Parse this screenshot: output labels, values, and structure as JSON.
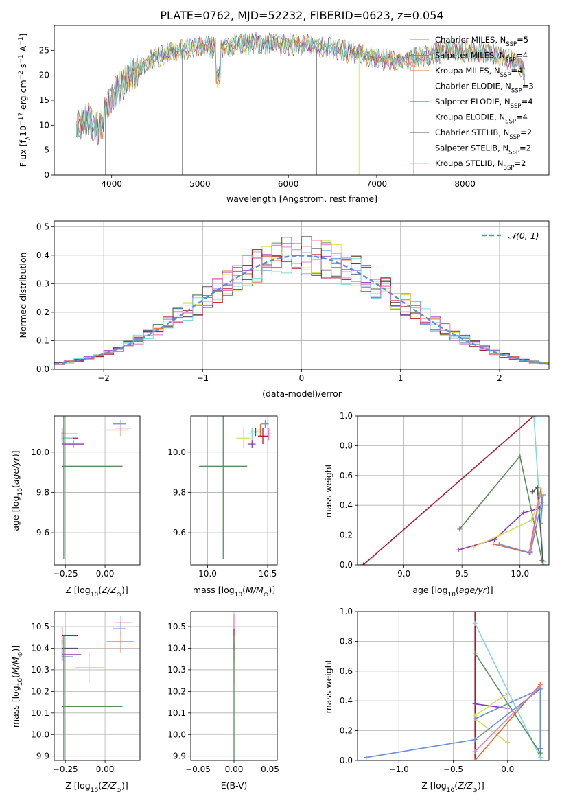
{
  "figure_title": "PLATE=0762, MJD=52232, FIBERID=0623, z=0.054",
  "colors": {
    "Chabrier MILES": "#6a8fd6",
    "Salpeter MILES": "#ee7d31",
    "Kroupa MILES": "#e46b2e",
    "Chabrier ELODIE": "#5c8c5c",
    "Salpeter ELODIE": "#8e35b4",
    "Kroupa ELODIE": "#d4e056",
    "Chabrier STELIB": "#555555",
    "Salpeter STELIB": "#b2182b",
    "Kroupa STELIB": "#7fd8dd",
    "extra_pink": "#e87bbd"
  },
  "chart_data": [
    {
      "id": "spectrum",
      "type": "line",
      "xlabel": "wavelength [Angstrom, rest frame]",
      "ylabel": "Flux [f_λ10^-17 erg cm^-2 s^-1 A^-1]",
      "xlim": [
        3350,
        8950
      ],
      "ylim": [
        0,
        30
      ],
      "xticks": [
        4000,
        5000,
        6000,
        7000,
        8000
      ],
      "yticks": [
        0,
        5,
        10,
        15,
        20,
        25
      ],
      "grid": false,
      "legend_position": "top-right",
      "legend": [
        {
          "label": "Chabrier MILES, N",
          "sub": "SSP",
          "suffix": "=5",
          "color_key": "Chabrier MILES"
        },
        {
          "label": "Salpeter MILES, N",
          "sub": "SSP",
          "suffix": "=4",
          "color_key": "Chabrier MILES"
        },
        {
          "label": "Kroupa MILES, N",
          "sub": "SSP",
          "suffix": "=4",
          "color_key": "Kroupa MILES"
        },
        {
          "label": "Chabrier ELODIE, N",
          "sub": "SSP",
          "suffix": "=3",
          "color_key": "Chabrier ELODIE"
        },
        {
          "label": "Salpeter ELODIE, N",
          "sub": "SSP",
          "suffix": "=4",
          "color_key": "Salpeter ELODIE"
        },
        {
          "label": "Kroupa ELODIE, N",
          "sub": "SSP",
          "suffix": "=4",
          "color_key": "Kroupa ELODIE"
        },
        {
          "label": "Chabrier STELIB, N",
          "sub": "SSP",
          "suffix": "=2",
          "color_key": "Chabrier STELIB"
        },
        {
          "label": "Salpeter STELIB, N",
          "sub": "SSP",
          "suffix": "=2",
          "color_key": "Salpeter STELIB"
        },
        {
          "label": "Kroupa STELIB, N",
          "sub": "SSP",
          "suffix": "=2",
          "color_key": "Kroupa STELIB"
        }
      ],
      "continuum": [
        [
          3600,
          10
        ],
        [
          3750,
          11
        ],
        [
          3850,
          9
        ],
        [
          3900,
          11
        ],
        [
          3960,
          14
        ],
        [
          4050,
          17
        ],
        [
          4150,
          19
        ],
        [
          4300,
          21
        ],
        [
          4450,
          23
        ],
        [
          4600,
          24.2
        ],
        [
          4800,
          25.2
        ],
        [
          5000,
          25.8
        ],
        [
          5200,
          25.6
        ],
        [
          5400,
          26.2
        ],
        [
          5600,
          26.5
        ],
        [
          5800,
          26.4
        ],
        [
          6000,
          26.2
        ],
        [
          6200,
          26.0
        ],
        [
          6400,
          25.6
        ],
        [
          6600,
          25.0
        ],
        [
          6800,
          24.2
        ],
        [
          7000,
          23.4
        ],
        [
          7200,
          22.8
        ],
        [
          7400,
          23.2
        ],
        [
          7600,
          24.2
        ],
        [
          7800,
          25.0
        ],
        [
          8000,
          24.8
        ],
        [
          8200,
          24.5
        ],
        [
          8400,
          23.8
        ],
        [
          8600,
          22.5
        ],
        [
          8680,
          20
        ]
      ],
      "dips": [
        [
          4800,
          0
        ],
        [
          6320,
          0
        ],
        [
          6800,
          0
        ],
        [
          7420,
          0
        ],
        [
          3930,
          0
        ]
      ]
    },
    {
      "id": "residuals",
      "type": "histogram",
      "xlabel": "(data-model)/error",
      "ylabel": "Normed distribution",
      "xlim": [
        -2.5,
        2.5
      ],
      "ylim": [
        0,
        0.52
      ],
      "xticks": [
        -2,
        -1,
        0,
        1,
        2
      ],
      "yticks": [
        0.0,
        0.1,
        0.2,
        0.3,
        0.4,
        0.5
      ],
      "grid": true,
      "legend": "𝒩(0, 1)",
      "legend_position": "top-right",
      "bin_width": 0.1,
      "bin_start": -2.5,
      "reference": {
        "type": "normal",
        "mean": 0,
        "sigma": 1
      }
    },
    {
      "id": "age_vs_Z",
      "type": "errorbar",
      "xlabel": "Z [log10(Z/Z⊙)]",
      "ylabel": "age  [log10(age/yr)]",
      "xlim": [
        -0.32,
        0.22
      ],
      "ylim": [
        9.44,
        10.18
      ],
      "xticks": [
        -0.25,
        0.0
      ],
      "xticklabels": [
        "−0.25",
        "0.00"
      ],
      "yticks": [
        9.6,
        9.8,
        10.0
      ],
      "grid": true,
      "points": [
        {
          "x": 0.1,
          "y": 10.14,
          "xerr": [
            0.05,
            0.03
          ],
          "yerr": 0.02,
          "color_key": "Chabrier MILES"
        },
        {
          "x": 0.1,
          "y": 10.11,
          "xerr": [
            0.09,
            0.05
          ],
          "yerr": 0.03,
          "color_key": "Kroupa MILES"
        },
        {
          "x": 0.1,
          "y": 10.12,
          "xerr": [
            0.04,
            0.07
          ],
          "yerr": 0.02,
          "color_key": "extra_pink"
        },
        {
          "x": -0.27,
          "y": 10.09,
          "xerr": [
            0.0,
            0.1
          ],
          "yerr": 0.03,
          "color_key": "Chabrier STELIB"
        },
        {
          "x": -0.27,
          "y": 10.07,
          "xerr": [
            0.0,
            0.1
          ],
          "yerr": 0.03,
          "color_key": "Salpeter STELIB"
        },
        {
          "x": -0.27,
          "y": 10.07,
          "xerr": [
            0.0,
            0.07
          ],
          "yerr": 0.02,
          "color_key": "Kroupa STELIB"
        },
        {
          "x": -0.2,
          "y": 10.04,
          "xerr": [
            0.07,
            0.07
          ],
          "yerr": 0.02,
          "color_key": "Salpeter ELODIE"
        },
        {
          "x": -0.26,
          "y": 9.93,
          "xerr": [
            0.01,
            0.37
          ],
          "yerr": 0.46,
          "color_key": "Chabrier ELODIE"
        }
      ]
    },
    {
      "id": "age_vs_mass",
      "type": "errorbar",
      "xlabel": "mass [log10(M/M⊙)]",
      "ylabel": "",
      "xlim": [
        9.86,
        10.58
      ],
      "ylim": [
        9.44,
        10.18
      ],
      "xticks": [
        10.0,
        10.5
      ],
      "yticks": [
        9.6,
        9.8,
        10.0
      ],
      "grid": true,
      "points": [
        {
          "x": 10.48,
          "y": 10.14,
          "xerr": 0.03,
          "yerr": 0.02,
          "color_key": "Chabrier MILES"
        },
        {
          "x": 10.44,
          "y": 10.11,
          "xerr": 0.03,
          "yerr": 0.03,
          "color_key": "Kroupa MILES"
        },
        {
          "x": 10.51,
          "y": 10.09,
          "xerr": 0.03,
          "yerr": 0.03,
          "color_key": "extra_pink"
        },
        {
          "x": 10.46,
          "y": 10.08,
          "xerr": 0.04,
          "yerr": 0.04,
          "color_key": "Salpeter STELIB"
        },
        {
          "x": 10.4,
          "y": 10.1,
          "xerr": 0.04,
          "yerr": 0.02,
          "color_key": "Chabrier STELIB"
        },
        {
          "x": 10.37,
          "y": 10.09,
          "xerr": 0.03,
          "yerr": 0.03,
          "color_key": "Kroupa STELIB"
        },
        {
          "x": 10.37,
          "y": 10.04,
          "xerr": 0.03,
          "yerr": 0.02,
          "color_key": "Salpeter ELODIE"
        },
        {
          "x": 10.3,
          "y": 10.07,
          "xerr": 0.06,
          "yerr": 0.05,
          "color_key": "Kroupa ELODIE"
        },
        {
          "x": 10.13,
          "y": 9.93,
          "xerr": 0.2,
          "yerr": 0.46,
          "color_key": "Chabrier ELODIE"
        }
      ]
    },
    {
      "id": "massweight_vs_age",
      "type": "line",
      "xlabel": "age  [log10(age/yr)]",
      "ylabel": "mass weight",
      "xlim": [
        8.6,
        10.25
      ],
      "ylim": [
        0,
        1.0
      ],
      "xticks": [
        9.0,
        9.5,
        10.0
      ],
      "yticks": [
        0.0,
        0.2,
        0.4,
        0.6,
        0.8,
        1.0
      ],
      "grid": true,
      "series": [
        {
          "color_key": "Salpeter STELIB",
          "x": [
            8.65,
            10.12
          ],
          "y": [
            0.0,
            1.0
          ]
        },
        {
          "color_key": "Kroupa STELIB",
          "x": [
            10.12,
            10.2
          ],
          "y": [
            1.0,
            0.02
          ]
        },
        {
          "color_key": "Chabrier ELODIE",
          "x": [
            9.48,
            10.0,
            10.19
          ],
          "y": [
            0.24,
            0.73,
            0.03
          ]
        },
        {
          "color_key": "Chabrier STELIB",
          "x": [
            10.11,
            10.15,
            10.2
          ],
          "y": [
            0.49,
            0.52,
            0.0
          ]
        },
        {
          "color_key": "Salpeter ELODIE",
          "x": [
            9.47,
            9.78,
            10.03,
            10.17
          ],
          "y": [
            0.1,
            0.17,
            0.35,
            0.38
          ]
        },
        {
          "color_key": "Kroupa ELODIE",
          "x": [
            9.6,
            9.83,
            10.1,
            10.18
          ],
          "y": [
            0.12,
            0.2,
            0.3,
            0.47
          ]
        },
        {
          "color_key": "Kroupa MILES",
          "x": [
            9.77,
            10.08,
            10.18,
            10.19
          ],
          "y": [
            0.14,
            0.08,
            0.51,
            0.42
          ]
        },
        {
          "color_key": "Chabrier MILES",
          "x": [
            9.82,
            10.09,
            10.2,
            10.18
          ],
          "y": [
            0.14,
            0.08,
            0.47,
            0.28
          ]
        },
        {
          "color_key": "extra_pink",
          "x": [
            10.09,
            10.17
          ],
          "y": [
            0.09,
            0.46
          ]
        }
      ]
    },
    {
      "id": "mass_vs_Z",
      "type": "errorbar",
      "xlabel": "Z [log10(Z/Z⊙)]",
      "ylabel": "mass [log10(M/M⊙)]",
      "xlim": [
        -0.32,
        0.22
      ],
      "ylim": [
        9.88,
        10.57
      ],
      "xticks": [
        -0.25,
        0.0
      ],
      "xticklabels": [
        "−0.25",
        "0.00"
      ],
      "yticks": [
        9.9,
        10.0,
        10.1,
        10.2,
        10.3,
        10.4,
        10.5
      ],
      "grid": true,
      "points": [
        {
          "x": 0.1,
          "y": 10.52,
          "xerr": [
            0.04,
            0.07
          ],
          "yerr": 0.03,
          "color_key": "extra_pink"
        },
        {
          "x": 0.1,
          "y": 10.49,
          "xerr": [
            0.05,
            0.03
          ],
          "yerr": 0.03,
          "color_key": "Chabrier MILES"
        },
        {
          "x": 0.1,
          "y": 10.43,
          "xerr": [
            0.09,
            0.08
          ],
          "yerr": 0.05,
          "color_key": "Kroupa MILES"
        },
        {
          "x": -0.27,
          "y": 10.46,
          "xerr": [
            0.0,
            0.1
          ],
          "yerr": 0.04,
          "color_key": "Salpeter STELIB"
        },
        {
          "x": -0.27,
          "y": 10.4,
          "xerr": [
            0.0,
            0.1
          ],
          "yerr": 0.04,
          "color_key": "Chabrier STELIB"
        },
        {
          "x": -0.27,
          "y": 10.37,
          "xerr": [
            0.0,
            0.12
          ],
          "yerr": 0.03,
          "color_key": "Salpeter ELODIE"
        },
        {
          "x": -0.27,
          "y": 10.36,
          "xerr": [
            0.0,
            0.07
          ],
          "yerr": 0.02,
          "color_key": "Chabrier MILES"
        },
        {
          "x": -0.1,
          "y": 10.31,
          "xerr": [
            0.09,
            0.09
          ],
          "yerr": 0.07,
          "color_key": "Kroupa ELODIE"
        },
        {
          "x": -0.26,
          "y": 10.13,
          "xerr": [
            0.01,
            0.37
          ],
          "yerr": 0.33,
          "color_key": "Chabrier ELODIE"
        }
      ]
    },
    {
      "id": "mass_vs_ebv",
      "type": "errorbar",
      "xlabel": "E(B-V)",
      "ylabel": "",
      "xlim": [
        -0.06,
        0.06
      ],
      "ylim": [
        9.88,
        10.57
      ],
      "xticks": [
        -0.05,
        0.0,
        0.05
      ],
      "xticklabels": [
        "−0.05",
        "0.00",
        "0.05"
      ],
      "yticks": [
        9.9,
        10.0,
        10.1,
        10.2,
        10.3,
        10.4,
        10.5
      ],
      "grid": true,
      "points": [
        {
          "x": 0.0,
          "y": 10.52,
          "xerr": 0.0,
          "yerr": 0.04,
          "color_key": "extra_pink"
        },
        {
          "x": 0.0,
          "y": 10.44,
          "xerr": 0.0,
          "yerr": 0.05,
          "color_key": "Salpeter STELIB"
        },
        {
          "x": 0.0,
          "y": 10.38,
          "xerr": 0.0,
          "yerr": 0.04,
          "color_key": "Chabrier MILES"
        },
        {
          "x": 0.0,
          "y": 10.3,
          "xerr": 0.0,
          "yerr": 0.07,
          "color_key": "Kroupa ELODIE"
        },
        {
          "x": 0.0,
          "y": 10.13,
          "xerr": 0.0,
          "yerr": 0.33,
          "color_key": "Chabrier ELODIE"
        }
      ]
    },
    {
      "id": "massweight_vs_Z",
      "type": "line",
      "xlabel": "Z [log10(Z/Z⊙)]",
      "ylabel": "mass weight",
      "xlim": [
        -1.38,
        0.38
      ],
      "ylim": [
        0,
        1.0
      ],
      "xticks": [
        -1.0,
        -0.5,
        0.0
      ],
      "xticklabels": [
        "−1.0",
        "−0.5",
        "0.0"
      ],
      "yticks": [
        0.0,
        0.2,
        0.4,
        0.6,
        0.8,
        1.0
      ],
      "grid": true,
      "series": [
        {
          "color_key": "Salpeter STELIB",
          "x": [
            -0.3,
            -0.3
          ],
          "y": [
            0.0,
            1.0
          ]
        },
        {
          "color_key": "Kroupa STELIB",
          "x": [
            -0.3,
            0.3
          ],
          "y": [
            0.92,
            0.02
          ]
        },
        {
          "color_key": "Chabrier ELODIE",
          "x": [
            -0.3,
            0.3
          ],
          "y": [
            0.72,
            0.05
          ]
        },
        {
          "color_key": "Salpeter ELODIE",
          "x": [
            -0.3,
            0.0,
            0.0
          ],
          "y": [
            0.38,
            0.35,
            0.12
          ]
        },
        {
          "color_key": "Kroupa ELODIE",
          "x": [
            -0.3,
            0.0,
            0.0,
            -0.3
          ],
          "y": [
            0.28,
            0.12,
            0.45,
            0.3
          ]
        },
        {
          "color_key": "Kroupa MILES",
          "x": [
            -0.3,
            0.3
          ],
          "y": [
            0.0,
            0.51
          ]
        },
        {
          "color_key": "Chabrier MILES",
          "x": [
            -1.3,
            -0.3,
            0.3,
            0.3
          ],
          "y": [
            0.02,
            0.14,
            0.48,
            0.08
          ]
        },
        {
          "color_key": "Chabrier MILES",
          "x": [
            -0.3,
            0.3
          ],
          "y": [
            0.28,
            0.48
          ]
        },
        {
          "color_key": "extra_pink",
          "x": [
            -0.3,
            0.3
          ],
          "y": [
            0.06,
            0.5
          ]
        }
      ]
    }
  ]
}
